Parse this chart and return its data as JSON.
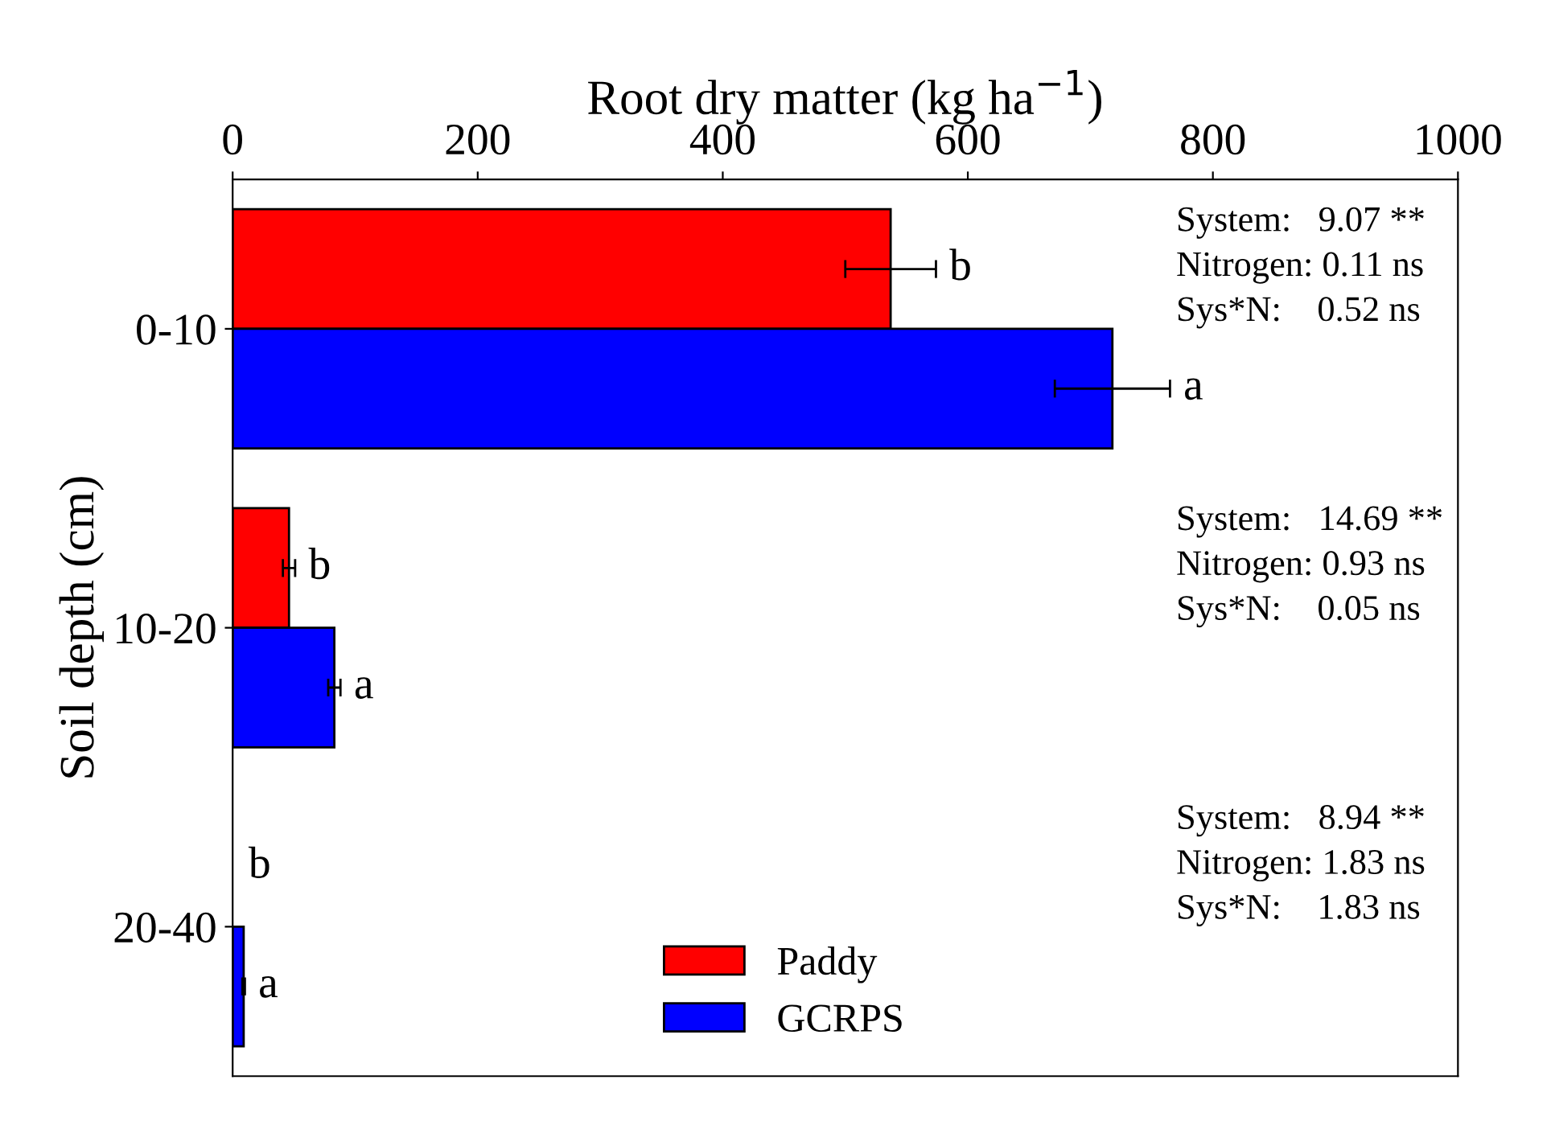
{
  "chart_data": {
    "type": "bar",
    "orientation": "horizontal",
    "xlabel": "Root dry matter (kg ha$^{−1}$)",
    "ylabel": "Soil depth (cm)",
    "categories": [
      "0-10",
      "10-20",
      "20-40"
    ],
    "series": [
      {
        "name": "Paddy",
        "color": "#ff0000",
        "values": [
          537,
          46,
          null
        ],
        "errors": [
          37,
          5,
          null
        ]
      },
      {
        "name": "GCRPS",
        "color": "#0000ff",
        "values": [
          718,
          83,
          9
        ],
        "errors": [
          47,
          5,
          1
        ]
      }
    ],
    "xlim": [
      0,
      1000
    ],
    "xticks": [
      0,
      200,
      400,
      600,
      800,
      1000
    ],
    "annotations": [
      {
        "text": "b",
        "x": 537,
        "y": "0-10"
      },
      {
        "text": "a",
        "x": 718,
        "y": "0-10"
      },
      {
        "text": "b",
        "x": 46,
        "y": "10-20"
      },
      {
        "text": "a",
        "x": 83,
        "y": "10-20"
      },
      {
        "text": "b",
        "x": 2,
        "y": "20-40"
      },
      {
        "text": "a",
        "x": 9,
        "y": "20-40"
      },
      "System:   9.07 **\nNitrogen: 0.11 ns\nSys*N:    0.52 ns",
      "System:   14.69 **\nNitrogen: 0.93 ns\nSys*N:    0.05 ns",
      "System:   8.94 **\nNitrogen: 1.83 ns\nSys*N:    1.83 ns"
    ],
    "legend": "bottom",
    "grid": false
  }
}
